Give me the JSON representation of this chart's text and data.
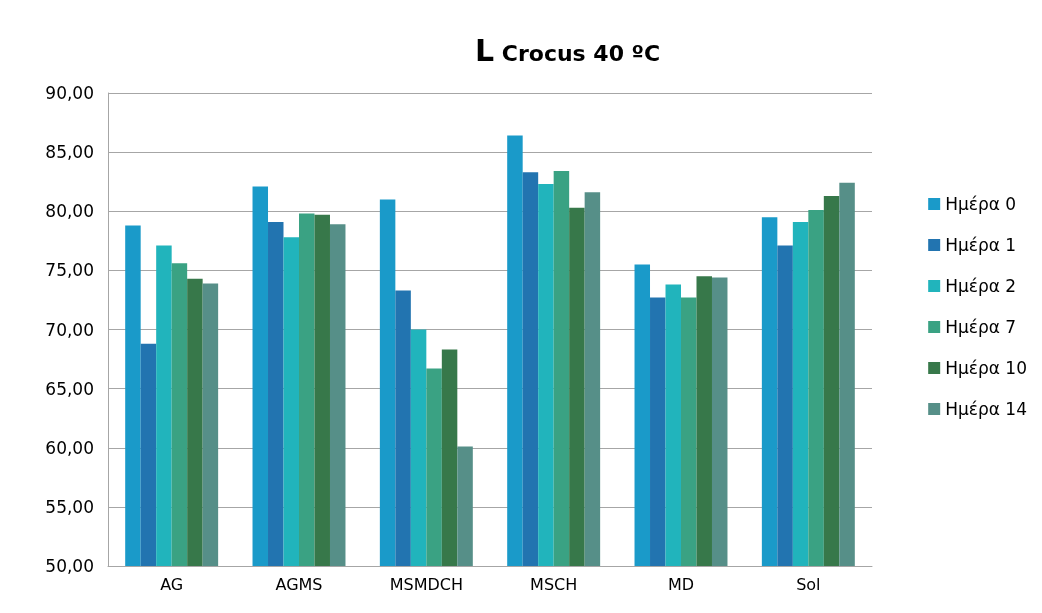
{
  "chart_data": {
    "type": "bar",
    "title": "L Crocus 40 ºC",
    "categories": [
      "AG",
      "AGMS",
      "MSMDCH",
      "MSCH",
      "MD",
      "Sol"
    ],
    "series": [
      {
        "name": "Ημέρα 0",
        "color": "#1a9ac9",
        "values": [
          78.8,
          82.1,
          81.0,
          86.4,
          75.5,
          79.5
        ]
      },
      {
        "name": "Ημέρα 1",
        "color": "#2274b0",
        "values": [
          68.8,
          79.1,
          73.3,
          83.3,
          72.7,
          77.1
        ]
      },
      {
        "name": "Ημέρα 2",
        "color": "#21b4bc",
        "values": [
          77.1,
          77.8,
          70.0,
          82.3,
          73.8,
          79.1
        ]
      },
      {
        "name": "Ημέρα 7",
        "color": "#3aa283",
        "values": [
          75.6,
          79.8,
          66.7,
          83.4,
          72.7,
          80.1
        ]
      },
      {
        "name": "Ημέρα 10",
        "color": "#37784a",
        "values": [
          74.3,
          79.7,
          68.3,
          80.3,
          74.5,
          81.3
        ]
      },
      {
        "name": "Ημέρα 14",
        "color": "#568f88",
        "values": [
          73.9,
          78.9,
          60.1,
          81.6,
          74.4,
          82.4
        ]
      }
    ],
    "ylim": [
      50,
      90
    ],
    "yticks": [
      {
        "value": 50,
        "label": "50,00"
      },
      {
        "value": 55,
        "label": "55,00"
      },
      {
        "value": 60,
        "label": "60,00"
      },
      {
        "value": 65,
        "label": "65,00"
      },
      {
        "value": 70,
        "label": "70,00"
      },
      {
        "value": 75,
        "label": "75,00"
      },
      {
        "value": 80,
        "label": "80,00"
      },
      {
        "value": 85,
        "label": "85,00"
      },
      {
        "value": 90,
        "label": "90,00"
      }
    ],
    "grid": "y",
    "legend": "right"
  }
}
